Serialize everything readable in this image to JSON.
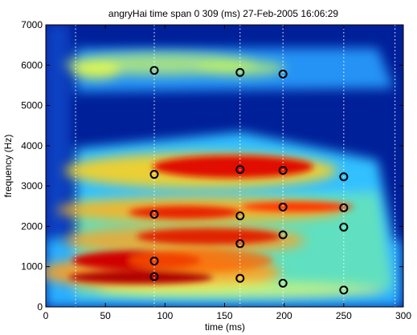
{
  "chart_data": {
    "type": "heatmap",
    "title": "angryHai time span 0 309 (ms) 27-Feb-2005 16:06:29",
    "xlabel": "time (ms)",
    "ylabel": "frequency (Hz)",
    "xlim": [
      0,
      300
    ],
    "ylim": [
      0,
      7000
    ],
    "xticks": [
      "0",
      "50",
      "100",
      "150",
      "200",
      "250",
      "300"
    ],
    "yticks": [
      "0",
      "1000",
      "2000",
      "3000",
      "4000",
      "5000",
      "6000",
      "7000"
    ],
    "colormap": "jet",
    "markers": [
      {
        "x": 91,
        "y": 5870
      },
      {
        "x": 91,
        "y": 3290
      },
      {
        "x": 91,
        "y": 2300
      },
      {
        "x": 91,
        "y": 1140
      },
      {
        "x": 91,
        "y": 750
      },
      {
        "x": 163,
        "y": 5820
      },
      {
        "x": 163,
        "y": 3410
      },
      {
        "x": 163,
        "y": 2260
      },
      {
        "x": 163,
        "y": 1570
      },
      {
        "x": 163,
        "y": 710
      },
      {
        "x": 199,
        "y": 5780
      },
      {
        "x": 199,
        "y": 3390
      },
      {
        "x": 199,
        "y": 2480
      },
      {
        "x": 199,
        "y": 1790
      },
      {
        "x": 199,
        "y": 590
      },
      {
        "x": 250,
        "y": 3230
      },
      {
        "x": 250,
        "y": 2460
      },
      {
        "x": 250,
        "y": 1980
      },
      {
        "x": 250,
        "y": 420
      }
    ],
    "vlines": [
      25,
      91,
      163,
      199,
      250,
      293
    ]
  }
}
